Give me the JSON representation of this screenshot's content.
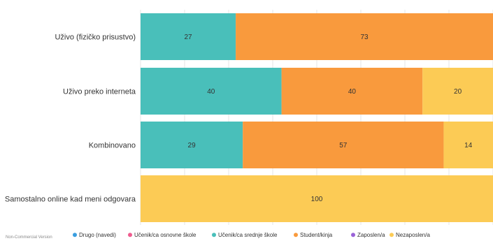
{
  "chart_data": {
    "type": "bar",
    "orientation": "horizontal",
    "stacked": true,
    "normalized_percent": true,
    "xlim": [
      0,
      100
    ],
    "grid": true,
    "legend_position": "bottom",
    "categories": [
      "Uživo (fizičko prisustvo)",
      "Uživo preko interneta",
      "Kombinovano",
      "Samostalno online kad meni odgovara"
    ],
    "series": [
      {
        "name": "Drugo (navedi)",
        "color": "#3a9ee0",
        "values": [
          0,
          0,
          0,
          0
        ]
      },
      {
        "name": "Učenik/ca osnovne škole",
        "color": "#ef5b8f",
        "values": [
          0,
          0,
          0,
          0
        ]
      },
      {
        "name": "Učenik/ca srednje škole",
        "color": "#49bfba",
        "values": [
          27,
          40,
          29,
          0
        ]
      },
      {
        "name": "Student/kinja",
        "color": "#f99a3d",
        "values": [
          73,
          40,
          57,
          0
        ]
      },
      {
        "name": "Zaposlen/a",
        "color": "#9a63d8",
        "values": [
          0,
          0,
          0,
          0
        ]
      },
      {
        "name": "Nezaposlen/a",
        "color": "#fccb55",
        "values": [
          0,
          20,
          14,
          100
        ]
      }
    ],
    "credit": "Non-Commercial Version"
  }
}
